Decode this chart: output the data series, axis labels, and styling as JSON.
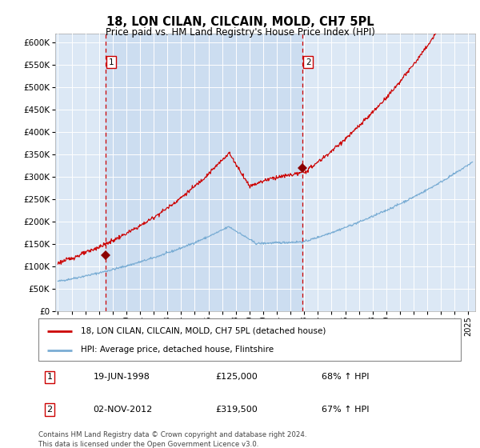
{
  "title": "18, LON CILAN, CILCAIN, MOLD, CH7 5PL",
  "subtitle": "Price paid vs. HM Land Registry's House Price Index (HPI)",
  "background_color": "#ffffff",
  "plot_bg_color": "#dce8f5",
  "grid_color": "#ffffff",
  "red_line_color": "#cc0000",
  "blue_line_color": "#7aadd4",
  "marker_color": "#8b0000",
  "vline_color": "#cc0000",
  "purchase1_date": 1998.47,
  "purchase1_price": 125000,
  "purchase2_date": 2012.84,
  "purchase2_price": 319500,
  "legend_items": [
    "18, LON CILAN, CILCAIN, MOLD, CH7 5PL (detached house)",
    "HPI: Average price, detached house, Flintshire"
  ],
  "table_rows": [
    [
      "1",
      "19-JUN-1998",
      "£125,000",
      "68% ↑ HPI"
    ],
    [
      "2",
      "02-NOV-2012",
      "£319,500",
      "67% ↑ HPI"
    ]
  ],
  "footnote": "Contains HM Land Registry data © Crown copyright and database right 2024.\nThis data is licensed under the Open Government Licence v3.0.",
  "ylim": [
    0,
    620000
  ],
  "yticks": [
    0,
    50000,
    100000,
    150000,
    200000,
    250000,
    300000,
    350000,
    400000,
    450000,
    500000,
    550000,
    600000
  ],
  "xlim_start": 1994.8,
  "xlim_end": 2025.5
}
